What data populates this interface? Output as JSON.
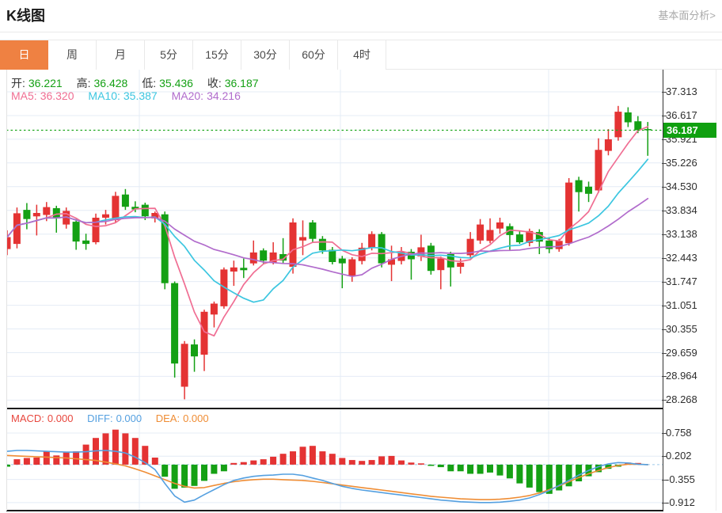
{
  "header": {
    "title": "K线图",
    "link_label": "基本面分析>"
  },
  "tabs": [
    {
      "label": "日",
      "active": true
    },
    {
      "label": "周",
      "active": false
    },
    {
      "label": "月",
      "active": false
    },
    {
      "label": "5分",
      "active": false
    },
    {
      "label": "15分",
      "active": false
    },
    {
      "label": "30分",
      "active": false
    },
    {
      "label": "60分",
      "active": false
    },
    {
      "label": "4时",
      "active": false
    }
  ],
  "ohlc_legend": {
    "open_label": "开:",
    "open": "36.221",
    "high_label": "高:",
    "high": "36.428",
    "low_label": "低:",
    "low": "35.436",
    "close_label": "收:",
    "close": "36.187"
  },
  "ma_legend": {
    "ma5_label": "MA5:",
    "ma5": "36.320",
    "ma10_label": "MA10:",
    "ma10": "35.387",
    "ma20_label": "MA20:",
    "ma20": "34.216"
  },
  "macd_legend": {
    "macd_label": "MACD:",
    "macd": "0.000",
    "diff_label": "DIFF:",
    "diff": "0.000",
    "dea_label": "DEA:",
    "dea": "0.000"
  },
  "price_tag": "36.187",
  "colors": {
    "up": "#e43333",
    "down": "#14a014",
    "ma5": "#f06e93",
    "ma10": "#3cc6e0",
    "ma20": "#b16ccc",
    "diff": "#55a0e0",
    "dea": "#ef8d35",
    "macd_text": "#e8473e",
    "grid": "#e4ecf6",
    "tag_bg": "#10a010",
    "dotted_line": "#1ca51c",
    "tab_active_bg": "#ef8142",
    "link_text": "#a9a9a9",
    "zero_dash": "#9ec9ea"
  },
  "chart_data": {
    "type": "candlestick",
    "title": "K线图 (日K) with MACD sub-chart",
    "legend_position": "top-left",
    "grid": true,
    "main_axis_ticks": [
      "37.313",
      "36.617",
      "35.921",
      "35.226",
      "34.530",
      "33.834",
      "33.138",
      "32.443",
      "31.747",
      "31.051",
      "30.355",
      "29.659",
      "28.964",
      "28.268"
    ],
    "main_axis_range": [
      28.268,
      37.313
    ],
    "macd_axis_ticks": [
      "0.758",
      "0.202",
      "-0.355",
      "-0.912"
    ],
    "macd_axis_range": [
      -0.912,
      0.758
    ],
    "current_price": 36.187,
    "ma_periods": [
      5,
      10,
      20
    ],
    "candles_ohlc": [
      [
        32.7,
        33.25,
        32.52,
        33.05
      ],
      [
        32.85,
        33.92,
        32.72,
        33.75
      ],
      [
        33.85,
        34.05,
        33.28,
        33.58
      ],
      [
        33.66,
        34.0,
        33.1,
        33.76
      ],
      [
        33.7,
        34.08,
        33.52,
        33.93
      ],
      [
        33.9,
        33.97,
        33.18,
        33.6
      ],
      [
        33.42,
        33.92,
        33.3,
        33.82
      ],
      [
        33.5,
        33.58,
        32.68,
        32.92
      ],
      [
        32.95,
        33.15,
        32.68,
        32.85
      ],
      [
        32.9,
        33.74,
        32.84,
        33.62
      ],
      [
        33.62,
        33.85,
        33.42,
        33.72
      ],
      [
        33.55,
        34.38,
        33.48,
        34.26
      ],
      [
        34.3,
        34.46,
        33.85,
        33.94
      ],
      [
        33.94,
        34.1,
        33.78,
        33.86
      ],
      [
        34.0,
        34.06,
        33.55,
        33.66
      ],
      [
        33.6,
        33.8,
        33.48,
        33.76
      ],
      [
        33.72,
        33.8,
        31.52,
        31.7
      ],
      [
        31.7,
        31.75,
        28.93,
        29.34
      ],
      [
        28.66,
        30.0,
        28.29,
        29.92
      ],
      [
        29.9,
        30.05,
        29.1,
        29.55
      ],
      [
        29.6,
        30.92,
        29.12,
        30.86
      ],
      [
        30.78,
        31.16,
        30.4,
        31.1
      ],
      [
        31.02,
        32.16,
        30.95,
        32.1
      ],
      [
        32.04,
        32.36,
        31.62,
        32.16
      ],
      [
        32.15,
        32.42,
        31.85,
        32.08
      ],
      [
        32.28,
        32.95,
        32.22,
        32.6
      ],
      [
        32.66,
        32.72,
        32.28,
        32.36
      ],
      [
        32.3,
        32.9,
        32.25,
        32.6
      ],
      [
        32.55,
        33.02,
        32.28,
        32.36
      ],
      [
        32.18,
        33.6,
        31.98,
        33.48
      ],
      [
        32.95,
        33.54,
        32.52,
        33.05
      ],
      [
        33.48,
        33.55,
        32.9,
        33.0
      ],
      [
        33.0,
        33.08,
        32.56,
        32.66
      ],
      [
        32.68,
        32.76,
        32.25,
        32.32
      ],
      [
        32.42,
        32.5,
        31.55,
        32.28
      ],
      [
        31.9,
        32.46,
        31.74,
        32.4
      ],
      [
        32.35,
        32.88,
        32.25,
        32.74
      ],
      [
        32.74,
        33.22,
        32.66,
        33.14
      ],
      [
        33.14,
        33.2,
        32.16,
        32.28
      ],
      [
        32.24,
        32.8,
        31.76,
        32.4
      ],
      [
        32.35,
        32.76,
        32.25,
        32.62
      ],
      [
        32.62,
        32.7,
        31.8,
        32.4
      ],
      [
        32.48,
        33.12,
        32.35,
        32.75
      ],
      [
        32.8,
        32.88,
        31.95,
        32.06
      ],
      [
        32.08,
        32.48,
        31.52,
        32.42
      ],
      [
        32.55,
        32.62,
        31.6,
        32.16
      ],
      [
        32.18,
        32.42,
        31.98,
        32.3
      ],
      [
        32.52,
        33.2,
        32.45,
        33.0
      ],
      [
        32.95,
        33.58,
        32.85,
        33.42
      ],
      [
        32.94,
        33.6,
        32.87,
        33.26
      ],
      [
        33.3,
        33.62,
        33.15,
        33.48
      ],
      [
        33.37,
        33.45,
        32.68,
        33.11
      ],
      [
        33.13,
        33.22,
        32.85,
        32.9
      ],
      [
        32.88,
        33.3,
        32.78,
        33.23
      ],
      [
        33.2,
        33.28,
        32.55,
        32.92
      ],
      [
        32.95,
        33.05,
        32.58,
        32.7
      ],
      [
        32.7,
        33.0,
        32.62,
        32.94
      ],
      [
        32.87,
        34.78,
        32.8,
        34.65
      ],
      [
        34.72,
        34.82,
        33.8,
        34.37
      ],
      [
        34.53,
        34.68,
        34.08,
        34.32
      ],
      [
        34.42,
        35.95,
        34.35,
        35.61
      ],
      [
        35.58,
        36.22,
        35.45,
        35.92
      ],
      [
        35.98,
        36.9,
        35.88,
        36.73
      ],
      [
        36.71,
        36.86,
        36.28,
        36.42
      ],
      [
        36.45,
        36.6,
        36.1,
        36.19
      ],
      [
        36.221,
        36.428,
        35.436,
        36.187
      ]
    ],
    "macd_hist": [
      -0.05,
      0.13,
      0.16,
      0.17,
      0.32,
      0.22,
      0.29,
      0.32,
      0.48,
      0.64,
      0.75,
      0.84,
      0.75,
      0.64,
      0.45,
      0.17,
      -0.29,
      -0.58,
      -0.55,
      -0.51,
      -0.39,
      -0.22,
      -0.16,
      0.04,
      0.06,
      0.1,
      0.13,
      0.19,
      0.26,
      0.32,
      0.43,
      0.45,
      0.32,
      0.26,
      0.16,
      0.11,
      0.09,
      0.11,
      0.2,
      0.21,
      0.1,
      0.05,
      0.03,
      -0.03,
      -0.06,
      -0.16,
      -0.16,
      -0.22,
      -0.22,
      -0.19,
      -0.26,
      -0.33,
      -0.45,
      -0.55,
      -0.66,
      -0.7,
      -0.62,
      -0.52,
      -0.4,
      -0.28,
      -0.18,
      -0.1,
      -0.05,
      0.05,
      0.04,
      0.0
    ],
    "diff": [
      0.32,
      0.34,
      0.34,
      0.33,
      0.32,
      0.31,
      0.3,
      0.3,
      0.31,
      0.33,
      0.34,
      0.32,
      0.28,
      0.18,
      0.05,
      -0.12,
      -0.45,
      -0.75,
      -0.9,
      -0.85,
      -0.72,
      -0.6,
      -0.48,
      -0.38,
      -0.32,
      -0.28,
      -0.26,
      -0.25,
      -0.23,
      -0.23,
      -0.26,
      -0.32,
      -0.38,
      -0.45,
      -0.52,
      -0.57,
      -0.61,
      -0.64,
      -0.67,
      -0.7,
      -0.73,
      -0.76,
      -0.79,
      -0.82,
      -0.85,
      -0.87,
      -0.89,
      -0.9,
      -0.91,
      -0.91,
      -0.9,
      -0.88,
      -0.85,
      -0.8,
      -0.72,
      -0.62,
      -0.5,
      -0.38,
      -0.25,
      -0.14,
      -0.05,
      0.02,
      0.05,
      0.04,
      0.01,
      0.0
    ],
    "dea": [
      0.22,
      0.21,
      0.2,
      0.19,
      0.18,
      0.17,
      0.16,
      0.14,
      0.12,
      0.1,
      0.06,
      0.02,
      -0.03,
      -0.1,
      -0.18,
      -0.27,
      -0.36,
      -0.45,
      -0.52,
      -0.56,
      -0.55,
      -0.5,
      -0.45,
      -0.41,
      -0.38,
      -0.36,
      -0.35,
      -0.35,
      -0.36,
      -0.37,
      -0.38,
      -0.4,
      -0.43,
      -0.46,
      -0.49,
      -0.52,
      -0.55,
      -0.58,
      -0.61,
      -0.64,
      -0.67,
      -0.7,
      -0.73,
      -0.76,
      -0.78,
      -0.8,
      -0.82,
      -0.83,
      -0.84,
      -0.84,
      -0.83,
      -0.81,
      -0.78,
      -0.74,
      -0.68,
      -0.6,
      -0.51,
      -0.41,
      -0.31,
      -0.22,
      -0.14,
      -0.07,
      -0.02,
      0.01,
      0.01,
      0.0
    ]
  }
}
